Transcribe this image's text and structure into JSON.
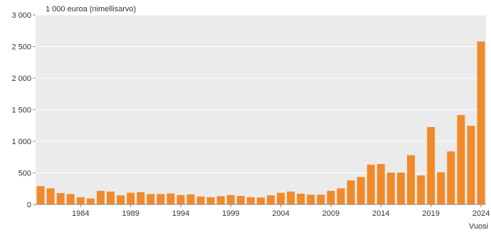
{
  "chart_data": {
    "type": "bar",
    "ylabel": "1 000 euroa (nimellisarvo)",
    "xlabel": "Vuosi",
    "ylim": [
      0,
      3000
    ],
    "yticks": [
      0,
      500,
      1000,
      1500,
      2000,
      2500,
      3000
    ],
    "ytick_labels": [
      "0",
      "500",
      "1 000",
      "1 500",
      "2 000",
      "2 500",
      "3 000"
    ],
    "xtick_labels": [
      "1984",
      "1989",
      "1994",
      "1999",
      "2004",
      "2009",
      "2014",
      "2019",
      "2024"
    ],
    "categories": [
      "1980",
      "1981",
      "1982",
      "1983",
      "1984",
      "1985",
      "1986",
      "1987",
      "1988",
      "1989",
      "1990",
      "1991",
      "1992",
      "1993",
      "1994",
      "1995",
      "1996",
      "1997",
      "1998",
      "1999",
      "2000",
      "2001",
      "2002",
      "2003",
      "2004",
      "2005",
      "2006",
      "2007",
      "2008",
      "2009",
      "2010",
      "2011",
      "2012",
      "2013",
      "2014",
      "2015",
      "2016",
      "2017",
      "2018",
      "2019",
      "2020",
      "2021",
      "2022",
      "2023",
      "2024"
    ],
    "values": [
      290,
      255,
      180,
      165,
      115,
      95,
      215,
      205,
      145,
      185,
      195,
      165,
      165,
      175,
      150,
      160,
      125,
      115,
      130,
      150,
      135,
      115,
      110,
      145,
      185,
      205,
      170,
      155,
      155,
      215,
      255,
      380,
      435,
      630,
      640,
      505,
      505,
      780,
      460,
      1225,
      510,
      840,
      1415,
      1245,
      2580
    ],
    "grid": true,
    "bar_color": "#f28a2a",
    "plot_background": "#ebebeb"
  }
}
